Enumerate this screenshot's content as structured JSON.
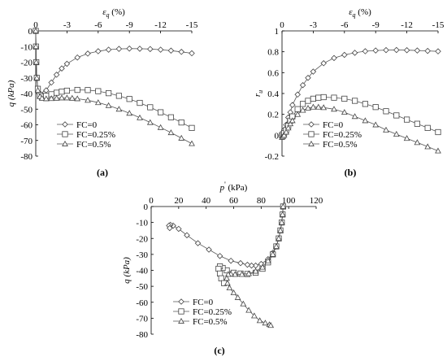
{
  "chart_data": [
    {
      "panel": "(a)",
      "type": "line",
      "xlabel": "εq (%)",
      "ylabel": "q (kPa)",
      "xlim": [
        0,
        -15
      ],
      "ylim": [
        -80,
        0
      ],
      "xticks": [
        "0",
        "-3",
        "-6",
        "-9",
        "-12",
        "-15"
      ],
      "yticks": [
        "0",
        "-10",
        "-20",
        "-30",
        "-40",
        "-50",
        "-60",
        "-70",
        "-80"
      ],
      "legend_position": "bottom-left",
      "series": [
        {
          "name": "FC=0",
          "marker": "diamond",
          "x": [
            0,
            -0.02,
            -0.05,
            -0.1,
            -0.2,
            -0.4,
            -0.6,
            -0.8,
            -1.0,
            -1.5,
            -2.0,
            -2.5,
            -3.0,
            -4.0,
            -5.0,
            -6.0,
            -7.0,
            -8.0,
            -9.0,
            -10.0,
            -11.0,
            -12.0,
            -13.0,
            -14.0,
            -15.0
          ],
          "y": [
            0,
            -10,
            -20,
            -30,
            -37,
            -40,
            -41,
            -40,
            -38,
            -33,
            -28,
            -24,
            -21,
            -17,
            -14.5,
            -13,
            -12,
            -11.5,
            -11.3,
            -11.4,
            -11.6,
            -12,
            -12.6,
            -13.4,
            -14.3
          ]
        },
        {
          "name": "FC=0.25%",
          "marker": "square",
          "x": [
            0,
            -0.02,
            -0.05,
            -0.1,
            -0.2,
            -0.4,
            -0.6,
            -1.0,
            -1.5,
            -2.0,
            -2.5,
            -3.0,
            -4.0,
            -5.0,
            -6.0,
            -7.0,
            -8.0,
            -9.0,
            -10.0,
            -11.0,
            -12.0,
            -13.0,
            -14.0,
            -15.0
          ],
          "y": [
            0,
            -10,
            -20,
            -30,
            -37,
            -41,
            -42,
            -41.5,
            -40.5,
            -39.5,
            -38.8,
            -38.2,
            -37.7,
            -37.8,
            -38.5,
            -39.8,
            -41.5,
            -43.5,
            -46,
            -48.8,
            -52,
            -55.2,
            -58.5,
            -62
          ]
        },
        {
          "name": "FC=0.5%",
          "marker": "triangle",
          "x": [
            0,
            -0.02,
            -0.05,
            -0.1,
            -0.2,
            -0.4,
            -0.6,
            -1.0,
            -1.5,
            -2.0,
            -2.5,
            -3.0,
            -3.5,
            -4.0,
            -5.0,
            -6.0,
            -7.0,
            -8.0,
            -9.0,
            -10.0,
            -11.0,
            -12.0,
            -13.0,
            -14.0,
            -15.0
          ],
          "y": [
            0,
            -10,
            -20,
            -30,
            -38,
            -42,
            -43,
            -43.3,
            -43.2,
            -43,
            -42.8,
            -42.8,
            -43,
            -43.3,
            -44.3,
            -45.8,
            -47.7,
            -50,
            -52.6,
            -55.5,
            -58.5,
            -61.7,
            -65,
            -68.5,
            -72
          ]
        }
      ]
    },
    {
      "panel": "(b)",
      "type": "line",
      "xlabel": "εq (%)",
      "ylabel": "ru",
      "xlim": [
        0,
        -15
      ],
      "ylim": [
        -0.2,
        1
      ],
      "xticks": [
        "0",
        "-3",
        "-6",
        "-9",
        "-12",
        "-15"
      ],
      "yticks": [
        "1",
        "0.8",
        "0.6",
        "0.4",
        "0.2",
        "0",
        "-0.2"
      ],
      "legend_position": "bottom-left",
      "series": [
        {
          "name": "FC=0",
          "marker": "diamond",
          "x": [
            0,
            -0.1,
            -0.2,
            -0.4,
            -0.6,
            -0.8,
            -1.0,
            -1.5,
            -2.0,
            -2.5,
            -3.0,
            -4.0,
            -5.0,
            -6.0,
            -7.0,
            -8.0,
            -9.0,
            -10.0,
            -11.0,
            -12.0,
            -13.0,
            -14.0,
            -15.0
          ],
          "y": [
            0,
            0.02,
            0.05,
            0.1,
            0.17,
            0.22,
            0.29,
            0.39,
            0.48,
            0.55,
            0.61,
            0.69,
            0.74,
            0.77,
            0.79,
            0.805,
            0.812,
            0.816,
            0.817,
            0.815,
            0.812,
            0.808,
            0.804
          ]
        },
        {
          "name": "FC=0.25%",
          "marker": "square",
          "x": [
            0,
            -0.1,
            -0.2,
            -0.4,
            -0.6,
            -0.8,
            -1.0,
            -1.5,
            -2.0,
            -2.5,
            -3.0,
            -3.5,
            -4.0,
            -5.0,
            -6.0,
            -7.0,
            -8.0,
            -9.0,
            -10.0,
            -11.0,
            -12.0,
            -13.0,
            -14.0,
            -15.0
          ],
          "y": [
            0,
            0.01,
            0.02,
            0.05,
            0.09,
            0.14,
            0.18,
            0.25,
            0.3,
            0.33,
            0.35,
            0.36,
            0.365,
            0.36,
            0.35,
            0.33,
            0.3,
            0.27,
            0.23,
            0.19,
            0.15,
            0.11,
            0.07,
            0.03
          ]
        },
        {
          "name": "FC=0.5%",
          "marker": "triangle",
          "x": [
            0,
            -0.1,
            -0.2,
            -0.4,
            -0.6,
            -0.8,
            -1.0,
            -1.5,
            -2.0,
            -2.5,
            -3.0,
            -3.5,
            -4.0,
            -5.0,
            -6.0,
            -7.0,
            -8.0,
            -9.0,
            -10.0,
            -11.0,
            -12.0,
            -13.0,
            -14.0,
            -15.0
          ],
          "y": [
            -0.02,
            -0.01,
            0,
            0.03,
            0.07,
            0.11,
            0.14,
            0.2,
            0.24,
            0.26,
            0.27,
            0.27,
            0.265,
            0.25,
            0.22,
            0.18,
            0.14,
            0.1,
            0.05,
            0.01,
            -0.03,
            -0.07,
            -0.11,
            -0.15
          ]
        }
      ]
    },
    {
      "panel": "(c)",
      "type": "line",
      "xlabel": "p' (kPa)",
      "ylabel": "q (kPa)",
      "xlim": [
        0,
        120
      ],
      "ylim": [
        -80,
        0
      ],
      "xticks": [
        "0",
        "20",
        "40",
        "60",
        "80",
        "100",
        "120"
      ],
      "yticks": [
        "0",
        "-10",
        "-20",
        "-30",
        "-40",
        "-50",
        "-60",
        "-70",
        "-80"
      ],
      "legend_position": "bottom-left",
      "series": [
        {
          "name": "FC=0",
          "marker": "diamond",
          "x": [
            96,
            95.6,
            95,
            94,
            92.8,
            91,
            88.5,
            85,
            80,
            76,
            73,
            70,
            65,
            58,
            50,
            42,
            34,
            26,
            20,
            16,
            14,
            13,
            13.5
          ],
          "y": [
            0,
            -5,
            -10,
            -15,
            -20,
            -25,
            -29,
            -33,
            -36,
            -37,
            -37,
            -36.5,
            -35.5,
            -34,
            -31,
            -27,
            -23,
            -18,
            -14,
            -12,
            -11.5,
            -12,
            -13.5
          ]
        },
        {
          "name": "FC=0.25%",
          "marker": "square",
          "x": [
            96,
            95.6,
            95,
            94,
            92.8,
            91,
            88.5,
            85,
            81,
            76,
            70,
            65,
            60,
            55,
            52,
            50,
            49,
            50,
            51,
            53
          ],
          "y": [
            0,
            -5,
            -10,
            -15,
            -20,
            -25,
            -30,
            -35,
            -39,
            -41.5,
            -42.3,
            -42,
            -41.5,
            -40,
            -38.5,
            -37.5,
            -39,
            -42,
            -45,
            -48
          ]
        },
        {
          "name": "FC=0.5%",
          "marker": "triangle",
          "x": [
            96,
            95.6,
            95,
            94,
            92.8,
            91,
            88.5,
            85,
            81,
            76,
            71,
            66,
            61,
            58,
            56,
            55,
            55.5,
            57,
            60,
            63,
            67,
            71,
            75,
            79,
            83,
            86,
            87
          ],
          "y": [
            0,
            -5,
            -10,
            -15,
            -20,
            -25,
            -30,
            -34,
            -38,
            -40.5,
            -42,
            -42.5,
            -42.5,
            -42.3,
            -42.5,
            -45,
            -48,
            -51,
            -54,
            -57,
            -61,
            -65,
            -68.5,
            -71.5,
            -73,
            -74,
            -74.5
          ]
        }
      ]
    }
  ]
}
